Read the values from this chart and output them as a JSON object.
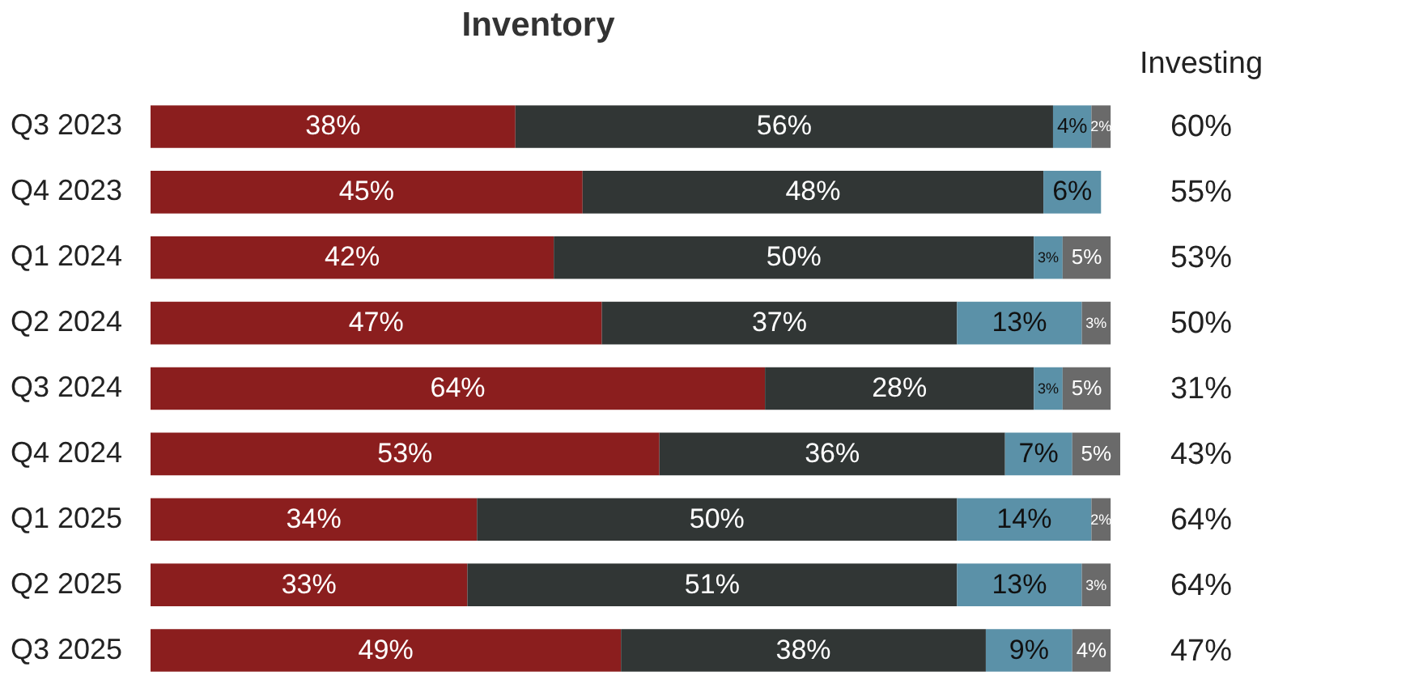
{
  "chart_data": {
    "type": "bar",
    "orientation": "horizontal",
    "stacked": true,
    "title": "Inventory",
    "categories": [
      "Q3 2023",
      "Q4 2023",
      "Q1 2024",
      "Q2 2024",
      "Q3 2024",
      "Q4 2024",
      "Q1 2025",
      "Q2 2025",
      "Q3 2025"
    ],
    "series": [
      {
        "color": "#8b1e1e",
        "values": [
          38,
          45,
          42,
          47,
          64,
          53,
          34,
          33,
          49
        ],
        "value_labels": [
          "38%",
          "45%",
          "42%",
          "47%",
          "64%",
          "53%",
          "34%",
          "33%",
          "49%"
        ]
      },
      {
        "color": "#313635",
        "values": [
          56,
          48,
          50,
          37,
          28,
          36,
          50,
          51,
          38
        ],
        "value_labels": [
          "56%",
          "48%",
          "50%",
          "37%",
          "28%",
          "36%",
          "50%",
          "51%",
          "38%"
        ]
      },
      {
        "color": "#5b91a8",
        "values": [
          4,
          6,
          3,
          13,
          3,
          7,
          14,
          13,
          9
        ],
        "value_labels": [
          "4%",
          "6%",
          "3%",
          "13%",
          "3%",
          "7%",
          "14%",
          "13%",
          "9%"
        ]
      },
      {
        "color": "#6a6a6a",
        "values": [
          2,
          null,
          5,
          3,
          5,
          5,
          2,
          3,
          4
        ],
        "value_labels": [
          "2%",
          null,
          "5%",
          "3%",
          "5%",
          "5%",
          "2%",
          "3%",
          "4%"
        ]
      }
    ],
    "tick_labels": false,
    "annotations": [
      "Investing",
      "60%",
      "55%",
      "53%",
      "50%",
      "31%",
      "43%",
      "64%",
      "64%",
      "47%"
    ]
  }
}
